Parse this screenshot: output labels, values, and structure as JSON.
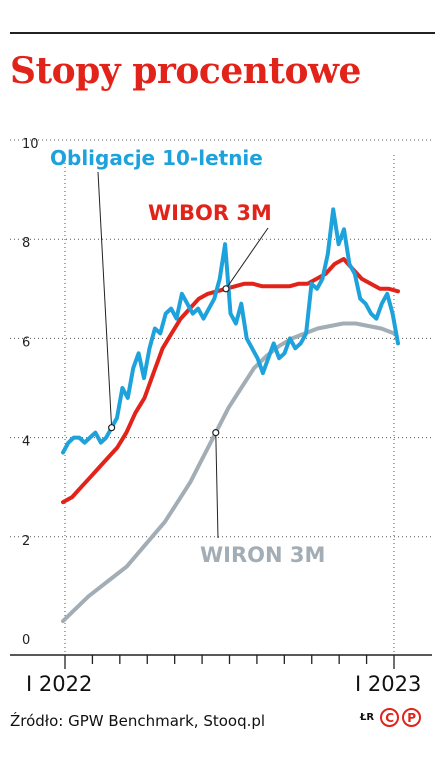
{
  "title": "Stopy procentowe",
  "source": "Źródło: GPW Benchmark, Stooq.pl",
  "logo": {
    "text": "ŁR",
    "letters": [
      "C",
      "P"
    ],
    "color": "#e2231a"
  },
  "colors": {
    "title": "#e2231a",
    "obligacje": "#1ea2dc",
    "wibor": "#e2231a",
    "wiron": "#a3adb5"
  },
  "chart_data": {
    "type": "line",
    "x_axis": {
      "tick_labels": [
        "I 2022",
        "I 2023"
      ],
      "range": [
        "2022-01",
        "2023-01"
      ]
    },
    "ylim": [
      0,
      10
    ],
    "yticks": [
      "0",
      "2",
      "4",
      "6",
      "8",
      "10"
    ],
    "grid": true,
    "series": [
      {
        "name": "Obligacje 10-letnie",
        "color": "#1ea2dc",
        "values": [
          3.7,
          3.9,
          4.0,
          4.0,
          3.9,
          4.0,
          4.1,
          3.9,
          4.0,
          4.2,
          4.4,
          5.0,
          4.8,
          5.4,
          5.7,
          5.2,
          5.8,
          6.2,
          6.1,
          6.5,
          6.6,
          6.4,
          6.9,
          6.7,
          6.5,
          6.6,
          6.4,
          6.6,
          6.8,
          7.2,
          7.9,
          6.5,
          6.3,
          6.7,
          6.0,
          5.8,
          5.6,
          5.3,
          5.6,
          5.9,
          5.6,
          5.7,
          6.0,
          5.8,
          5.9,
          6.1,
          7.1,
          7.0,
          7.2,
          7.7,
          8.6,
          7.9,
          8.2,
          7.5,
          7.3,
          6.8,
          6.7,
          6.5,
          6.4,
          6.7,
          6.9,
          6.5,
          5.9
        ]
      },
      {
        "name": "WIBOR 3M",
        "color": "#e2231a",
        "values": [
          2.7,
          2.8,
          3.0,
          3.2,
          3.4,
          3.6,
          3.8,
          4.1,
          4.5,
          4.8,
          5.3,
          5.8,
          6.1,
          6.4,
          6.6,
          6.8,
          6.9,
          6.95,
          7.0,
          7.05,
          7.1,
          7.1,
          7.05,
          7.05,
          7.05,
          7.05,
          7.1,
          7.1,
          7.2,
          7.3,
          7.5,
          7.6,
          7.4,
          7.2,
          7.1,
          7.0,
          7.0,
          6.95
        ]
      },
      {
        "name": "WIRON 3M",
        "color": "#a3adb5",
        "values": [
          0.3,
          0.55,
          0.8,
          1.0,
          1.2,
          1.4,
          1.7,
          2.0,
          2.3,
          2.7,
          3.1,
          3.6,
          4.1,
          4.6,
          5.0,
          5.4,
          5.65,
          5.85,
          6.0,
          6.1,
          6.2,
          6.25,
          6.3,
          6.3,
          6.25,
          6.2,
          6.1
        ]
      }
    ],
    "annotations": [
      {
        "series": "Obligacje 10-letnie",
        "text": "Obligacje 10-letnie",
        "color": "#1ea2dc"
      },
      {
        "series": "WIBOR 3M",
        "text": "WIBOR 3M",
        "color": "#e2231a"
      },
      {
        "series": "WIRON 3M",
        "text": "WIRON 3M",
        "color": "#a3adb5"
      }
    ]
  }
}
